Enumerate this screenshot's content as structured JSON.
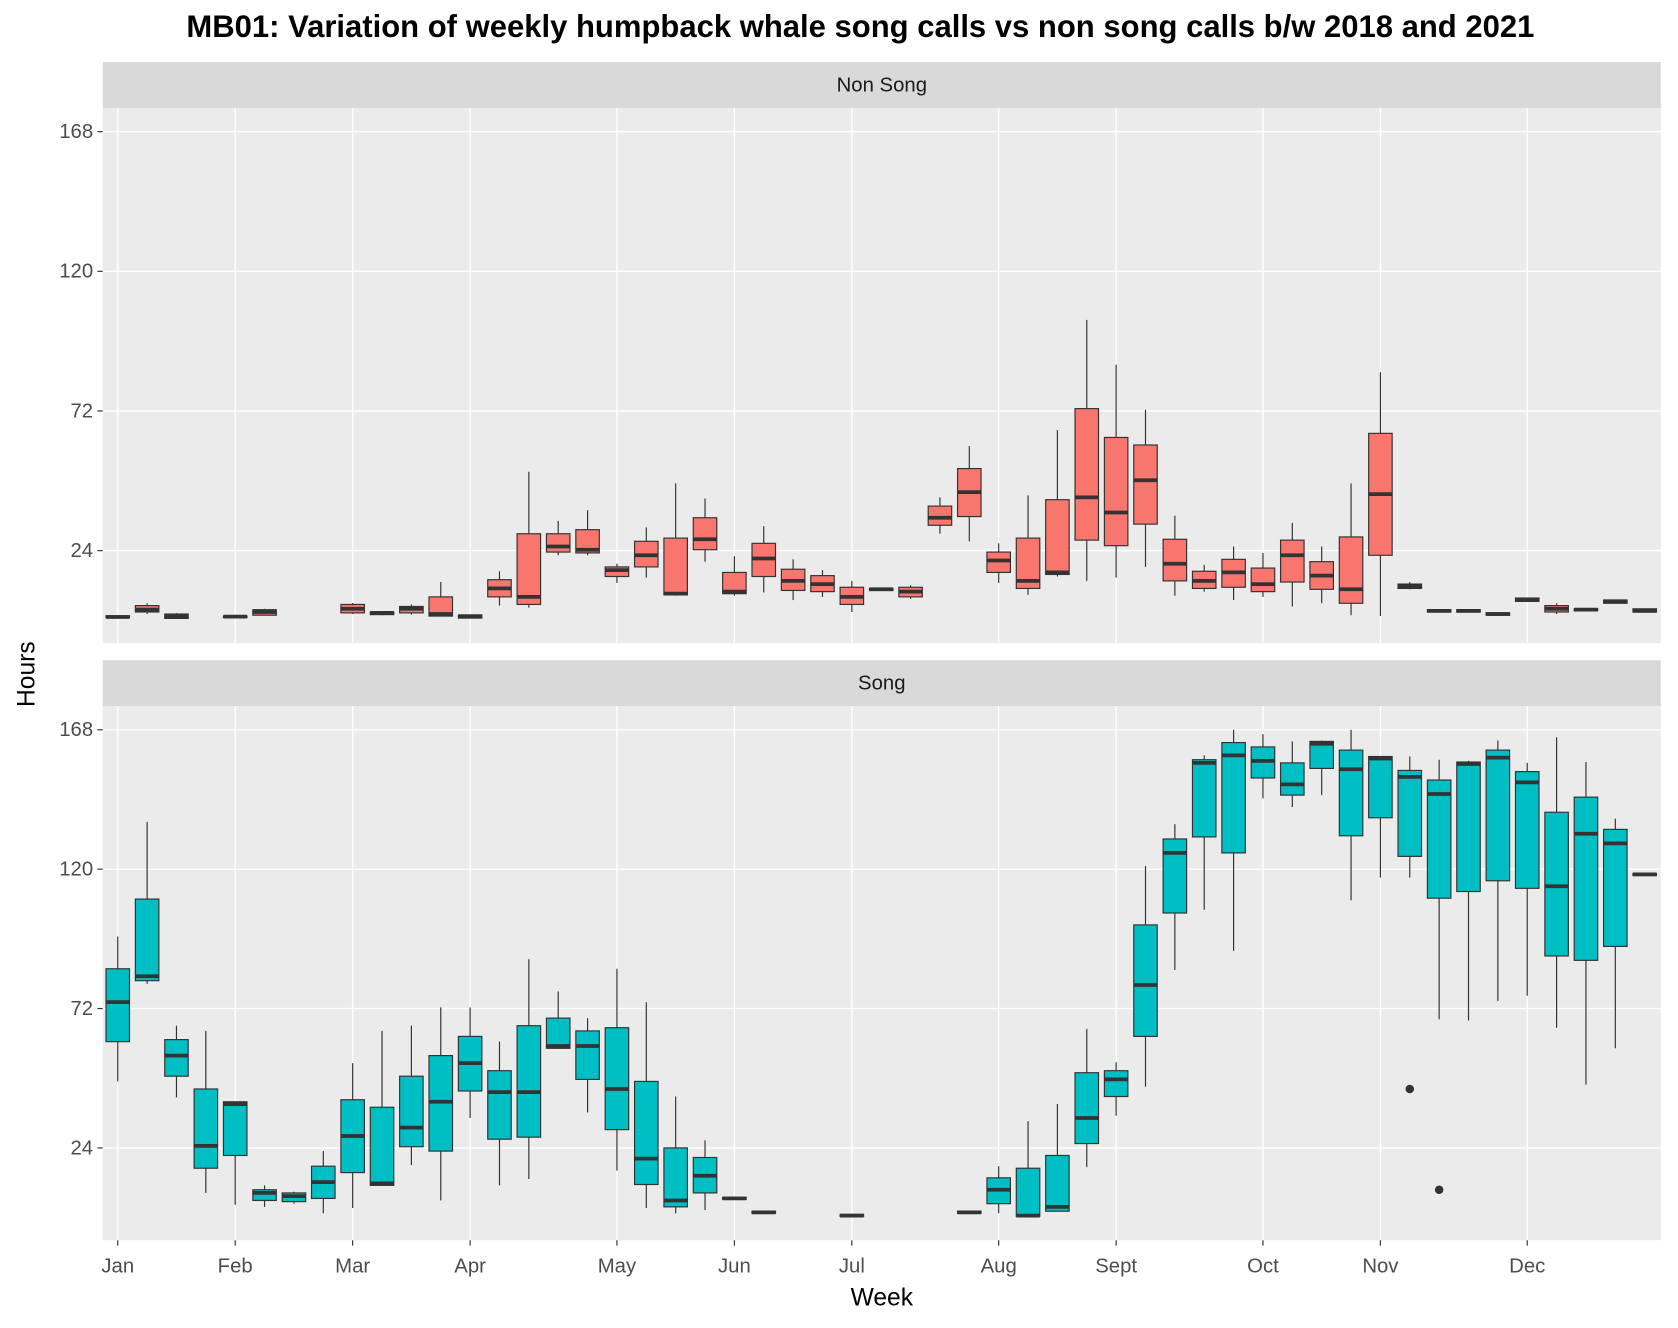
{
  "chart_data": {
    "type": "box",
    "title": "MB01: Variation of weekly humpback whale song calls vs non song calls b/w 2018 and 2021",
    "x_label": "Week",
    "y_label": "Hours",
    "xlim": [
      0.49,
      53.55
    ],
    "xticks": [
      {
        "value": 1,
        "label": "Jan"
      },
      {
        "value": 5,
        "label": "Feb"
      },
      {
        "value": 9,
        "label": "Mar"
      },
      {
        "value": 13,
        "label": "Apr"
      },
      {
        "value": 18,
        "label": "May"
      },
      {
        "value": 22,
        "label": "Jun"
      },
      {
        "value": 26,
        "label": "Jul"
      },
      {
        "value": 31,
        "label": "Aug"
      },
      {
        "value": 35,
        "label": "Sept"
      },
      {
        "value": 40,
        "label": "Oct"
      },
      {
        "value": 44,
        "label": "Nov"
      },
      {
        "value": 49,
        "label": "Dec"
      }
    ],
    "ylim": [
      -7.8,
      176.1
    ],
    "yticks": [
      24,
      72,
      120,
      168
    ],
    "grid": true,
    "facets": [
      {
        "name": "Non Song",
        "color": "#f8766d",
        "x": [
          1,
          2,
          3,
          5,
          6,
          9,
          10,
          11,
          12,
          13,
          14,
          15,
          16,
          17,
          18,
          19,
          20,
          21,
          22,
          23,
          24,
          25,
          26,
          27,
          28,
          29,
          30,
          31,
          32,
          33,
          34,
          35,
          36,
          37,
          38,
          39,
          40,
          41,
          42,
          43,
          44,
          45,
          46,
          47,
          48,
          49,
          50,
          51,
          52,
          53
        ],
        "low": [
          0.8,
          2.2,
          0.5,
          1,
          1.8,
          2.2,
          1.8,
          2,
          1.5,
          0.8,
          5.1,
          4.4,
          22.4,
          22.4,
          12.9,
          14.7,
          8.5,
          20.2,
          8.5,
          9.6,
          7,
          8.1,
          2.9,
          10.3,
          7.4,
          29.8,
          27.2,
          12.9,
          8.8,
          15.1,
          13.6,
          14.7,
          18.4,
          8.5,
          9.9,
          7,
          8.1,
          4.8,
          5.9,
          1.8,
          1.5,
          10.7,
          2.9,
          2.9,
          1.8,
          6.6,
          2.2,
          3.3,
          5.9,
          2.9
        ],
        "q1": [
          1,
          2.9,
          0.7,
          1,
          1.8,
          2.6,
          2,
          2.6,
          1.5,
          0.8,
          8.1,
          5.5,
          23.5,
          23.2,
          15.1,
          18.4,
          8.8,
          24.3,
          9.2,
          15.1,
          10.3,
          9.9,
          5.5,
          10.3,
          8.1,
          32.7,
          35.7,
          16.5,
          11,
          15.8,
          27.6,
          25.7,
          33.1,
          13.6,
          11,
          11.4,
          9.9,
          13.2,
          10.7,
          5.9,
          22.4,
          11,
          2.9,
          2.9,
          1.8,
          6.6,
          2.9,
          3.3,
          5.9,
          2.9
        ],
        "median": [
          1.2,
          3.7,
          1.5,
          1.3,
          2.9,
          4,
          2.6,
          4,
          2.2,
          1.5,
          11,
          8.1,
          25.4,
          24.3,
          17.3,
          22.4,
          9.2,
          27.9,
          9.9,
          21.3,
          13.6,
          12.5,
          8.1,
          10.7,
          9.9,
          35.3,
          44.1,
          20.6,
          13.6,
          16.5,
          42.3,
          37.1,
          48.2,
          19.5,
          13.6,
          16.5,
          12.5,
          22.4,
          15.4,
          10.7,
          43.4,
          11.8,
          3.3,
          3.3,
          2.2,
          7,
          4,
          3.7,
          6.6,
          3.3
        ],
        "q3": [
          1.6,
          5.1,
          2.2,
          1.5,
          3.7,
          5.5,
          2.9,
          4.8,
          8.1,
          1.8,
          14,
          29.8,
          29.8,
          31.2,
          18.4,
          27.2,
          28.3,
          35.3,
          16.5,
          26.5,
          17.6,
          15.4,
          11.4,
          11,
          11.4,
          39.3,
          52.2,
          23.5,
          28.3,
          41.5,
          72.8,
          62.9,
          60.3,
          27.9,
          16.9,
          21,
          18,
          27.6,
          20.2,
          28.7,
          64.3,
          12.5,
          3.7,
          3.7,
          2.6,
          7.7,
          5.1,
          4,
          7,
          4
        ],
        "high": [
          1.8,
          5.9,
          2.5,
          1.5,
          4,
          6,
          3,
          5.5,
          13.2,
          1.8,
          16.9,
          51.1,
          34.2,
          37.9,
          19.5,
          32,
          47.1,
          41.9,
          22.1,
          32.4,
          21,
          17.3,
          13.6,
          11,
          12.1,
          42.3,
          59.9,
          26.5,
          43,
          65.4,
          103.3,
          87.9,
          72.4,
          36,
          19.1,
          25.4,
          23.2,
          33.5,
          25.4,
          47.1,
          85.3,
          13.2,
          3.7,
          3.7,
          2.6,
          7.7,
          5.9,
          4,
          7,
          4
        ],
        "outliers": []
      },
      {
        "name": "Song",
        "color": "#00bfc4",
        "x": [
          1,
          2,
          3,
          4,
          5,
          6,
          7,
          8,
          9,
          10,
          11,
          12,
          13,
          14,
          15,
          16,
          17,
          18,
          19,
          20,
          21,
          22,
          23,
          26,
          30,
          31,
          32,
          33,
          34,
          35,
          36,
          37,
          38,
          39,
          40,
          41,
          42,
          43,
          44,
          45,
          46,
          47,
          48,
          49,
          50,
          51,
          52,
          53
        ],
        "low": [
          46.9,
          80.5,
          41.4,
          8.5,
          4.4,
          3.7,
          4.8,
          1.5,
          3.3,
          11.1,
          18.1,
          5.9,
          34.3,
          11.1,
          13.3,
          58.3,
          36.2,
          16.2,
          3.3,
          1.5,
          2.6,
          6.3,
          1.5,
          0.4,
          1.5,
          1.5,
          0.4,
          2.2,
          17.4,
          35.1,
          45.1,
          85.3,
          106,
          91.9,
          144.4,
          141.4,
          145.5,
          109.3,
          117.1,
          117.1,
          68.3,
          67.9,
          74.6,
          76.4,
          65.4,
          45.8,
          58.3,
          117.8
        ],
        "q1": [
          60.6,
          81.6,
          48.7,
          17,
          21.4,
          5.9,
          5.5,
          6.6,
          15.5,
          11.1,
          24.4,
          22.9,
          43.6,
          27,
          27.7,
          58.3,
          47.6,
          30.3,
          11.4,
          3.7,
          8.5,
          6.3,
          1.5,
          0.4,
          1.5,
          4.8,
          0.4,
          2.2,
          25.5,
          41.7,
          62.4,
          104.9,
          131.1,
          125.6,
          151.4,
          145.5,
          154.7,
          131.5,
          137.7,
          124.4,
          110,
          112.3,
          116,
          113.4,
          90.1,
          88.6,
          93.4,
          117.8
        ],
        "median": [
          74.2,
          83.1,
          55.8,
          24.7,
          39.1,
          8.5,
          7.4,
          12.2,
          28.1,
          11.8,
          31,
          39.9,
          53.2,
          43.2,
          43.2,
          59.1,
          59.1,
          44.3,
          20.3,
          5.9,
          14.4,
          6.6,
          1.8,
          0.7,
          1.8,
          9.6,
          0.7,
          3.7,
          34.3,
          47.6,
          80.1,
          125.6,
          156.6,
          159.2,
          157.3,
          149.2,
          163.2,
          154.4,
          158.1,
          151.8,
          145.9,
          156.2,
          158.4,
          149.9,
          114.1,
          132.2,
          128.9,
          118.2
        ],
        "q3": [
          85.7,
          109.7,
          61.3,
          44.3,
          39.9,
          9.6,
          8.5,
          17.7,
          40.6,
          38,
          48.7,
          55.8,
          62.4,
          50.6,
          66.1,
          68.7,
          64.3,
          65.4,
          46.9,
          24,
          20.7,
          7,
          2.2,
          1.1,
          2.2,
          13.7,
          17,
          21.4,
          49.9,
          50.6,
          100.8,
          130.4,
          157.7,
          163.6,
          162.1,
          156.6,
          164,
          161,
          158.8,
          154,
          150.7,
          156.9,
          161,
          153.6,
          139.6,
          144.8,
          133.7,
          118.5
        ],
        "high": [
          96.8,
          136.3,
          66.1,
          64.3,
          39.9,
          11.1,
          8.9,
          22.9,
          53.2,
          64.3,
          66.1,
          72.4,
          72.4,
          60.6,
          89,
          77.9,
          68.7,
          85.7,
          74.2,
          41.7,
          26.6,
          7,
          2.2,
          1.1,
          2.2,
          17.7,
          33.2,
          39.1,
          65,
          53.5,
          121.1,
          135.5,
          159.2,
          168,
          166.5,
          164,
          164.3,
          168,
          158.8,
          158.8,
          157.7,
          157.3,
          164.3,
          156.6,
          165.4,
          156.9,
          137.4,
          118.5
        ],
        "outliers": [
          {
            "x": 45,
            "value": 44.3
          },
          {
            "x": 46,
            "value": 9.6
          }
        ]
      }
    ]
  }
}
